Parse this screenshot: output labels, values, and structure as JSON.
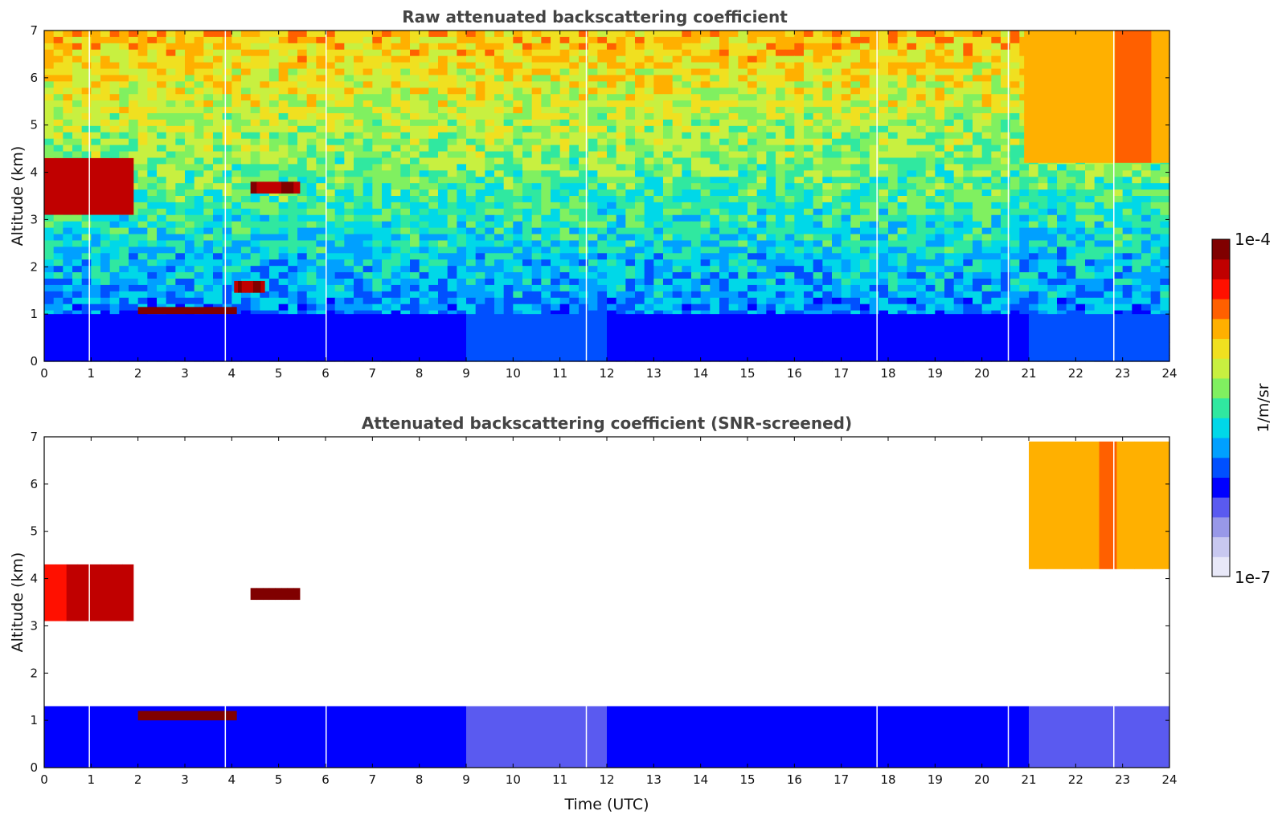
{
  "chart_data": [
    {
      "type": "heatmap",
      "title": "Raw attenuated backscattering coefficient",
      "xlabel": "",
      "ylabel": "Altitude (km)",
      "xlim": [
        0,
        24
      ],
      "ylim": [
        0,
        7
      ],
      "xticks": [
        "0",
        "1",
        "2",
        "3",
        "4",
        "5",
        "6",
        "7",
        "8",
        "9",
        "10",
        "11",
        "12",
        "13",
        "14",
        "15",
        "16",
        "17",
        "18",
        "19",
        "20",
        "21",
        "22",
        "23",
        "24"
      ],
      "yticks": [
        "0",
        "1",
        "2",
        "3",
        "4",
        "5",
        "6",
        "7"
      ],
      "features": [
        {
          "name": "boundary-layer",
          "x": [
            0,
            24
          ],
          "y": [
            0,
            1.0
          ],
          "level": 0.28
        },
        {
          "name": "low-cloud",
          "x": [
            2.0,
            4.1
          ],
          "y": [
            1.0,
            1.15
          ],
          "level": 0.98
        },
        {
          "name": "cloud-near-4.3h",
          "x": [
            4.05,
            4.7
          ],
          "y": [
            1.45,
            1.7
          ],
          "level": 0.95
        },
        {
          "name": "cirrus-early",
          "x": [
            0,
            1.9
          ],
          "y": [
            3.1,
            4.3
          ],
          "level": 0.9
        },
        {
          "name": "cloud-at-5h",
          "x": [
            4.4,
            5.45
          ],
          "y": [
            3.55,
            3.8
          ],
          "level": 0.95
        },
        {
          "name": "cirrus-late",
          "x": [
            20.9,
            24
          ],
          "y": [
            4.2,
            7.0
          ],
          "level": 0.78
        }
      ]
    },
    {
      "type": "heatmap",
      "title": "Attenuated backscattering coefficient (SNR-screened)",
      "xlabel": "Time (UTC)",
      "ylabel": "Altitude (km)",
      "xlim": [
        0,
        24
      ],
      "ylim": [
        0,
        7
      ],
      "xticks": [
        "0",
        "1",
        "2",
        "3",
        "4",
        "5",
        "6",
        "7",
        "8",
        "9",
        "10",
        "11",
        "12",
        "13",
        "14",
        "15",
        "16",
        "17",
        "18",
        "19",
        "20",
        "21",
        "22",
        "23",
        "24"
      ],
      "yticks": [
        "0",
        "1",
        "2",
        "3",
        "4",
        "5",
        "6",
        "7"
      ],
      "features": [
        {
          "name": "boundary-layer",
          "x": [
            0,
            24
          ],
          "y": [
            0,
            1.3
          ],
          "level": 0.25
        },
        {
          "name": "low-cloud",
          "x": [
            2.0,
            4.1
          ],
          "y": [
            1.0,
            1.2
          ],
          "level": 1.0
        },
        {
          "name": "cirrus-early",
          "x": [
            0,
            1.9
          ],
          "y": [
            3.1,
            4.3
          ],
          "level": 0.9
        },
        {
          "name": "cloud-at-5h",
          "x": [
            4.4,
            5.45
          ],
          "y": [
            3.55,
            3.8
          ],
          "level": 1.0
        },
        {
          "name": "cirrus-late",
          "x": [
            21.0,
            24
          ],
          "y": [
            4.2,
            6.9
          ],
          "level": 0.75
        }
      ]
    }
  ],
  "colorbar": {
    "label": "1/m/sr",
    "max_label": "1e-4",
    "min_label": "1e-7",
    "colors": [
      "#e8e8f8",
      "#c8c8f0",
      "#9898e8",
      "#5a5af0",
      "#0000ff",
      "#0050ff",
      "#00a0ff",
      "#00d8e8",
      "#30e8a0",
      "#80f060",
      "#c8f040",
      "#f0e020",
      "#ffb000",
      "#ff6000",
      "#ff1000",
      "#c00000",
      "#800000"
    ]
  }
}
